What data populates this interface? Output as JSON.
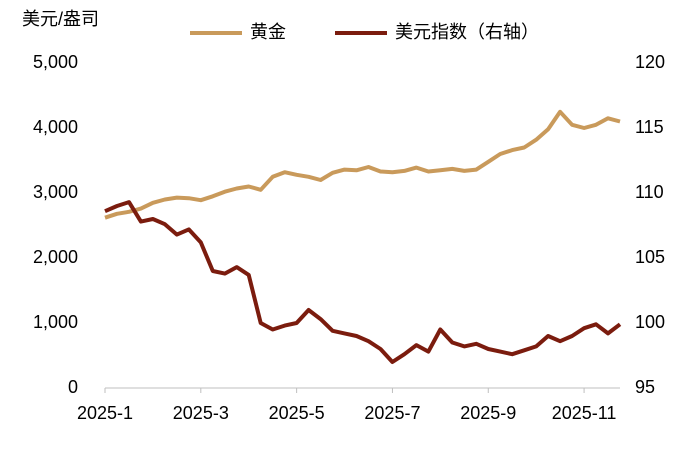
{
  "chart_data": {
    "type": "line",
    "y_label": "美元/盎司",
    "x": [
      1,
      1.25,
      1.5,
      1.75,
      2,
      2.25,
      2.5,
      2.75,
      3,
      3.25,
      3.5,
      3.75,
      4,
      4.25,
      4.5,
      4.75,
      5,
      5.25,
      5.5,
      5.75,
      6,
      6.25,
      6.5,
      6.75,
      7,
      7.25,
      7.5,
      7.75,
      8,
      8.25,
      8.5,
      8.75,
      9,
      9.25,
      9.5,
      9.75,
      10,
      10.25,
      10.5,
      10.75,
      11,
      11.25,
      11.5,
      11.75
    ],
    "xlim": [
      1,
      11.75
    ],
    "xticks": [
      {
        "value": 1,
        "label": "2025-1"
      },
      {
        "value": 3,
        "label": "2025-3"
      },
      {
        "value": 5,
        "label": "2025-5"
      },
      {
        "value": 7,
        "label": "2025-7"
      },
      {
        "value": 9,
        "label": "2025-9"
      },
      {
        "value": 11,
        "label": "2025-11"
      }
    ],
    "ylim": [
      0,
      5000
    ],
    "yticks": [
      0,
      {
        "value": 1000,
        "label": "1,000"
      },
      {
        "value": 2000,
        "label": "2,000"
      },
      {
        "value": 3000,
        "label": "3,000"
      },
      {
        "value": 4000,
        "label": "4,000"
      },
      {
        "value": 5000,
        "label": "5,000"
      }
    ],
    "y2lim": [
      95,
      120
    ],
    "y2ticks": [
      95,
      100,
      105,
      110,
      115,
      120
    ],
    "legend": "top",
    "series": [
      {
        "name": "黄金",
        "color": "#c99a5b",
        "values": [
          2620,
          2680,
          2710,
          2760,
          2850,
          2900,
          2930,
          2920,
          2890,
          2950,
          3020,
          3070,
          3100,
          3050,
          3250,
          3320,
          3280,
          3250,
          3200,
          3310,
          3360,
          3350,
          3400,
          3330,
          3320,
          3340,
          3390,
          3330,
          3350,
          3370,
          3340,
          3360,
          3480,
          3600,
          3660,
          3700,
          3820,
          3980,
          4250,
          4050,
          4000,
          4050,
          4150,
          4100
        ]
      },
      {
        "name": "美元指数（右轴）",
        "color": "#7b1c0e",
        "axis": "y2",
        "values": [
          108.6,
          109.0,
          109.3,
          107.8,
          108.0,
          107.6,
          106.8,
          107.2,
          106.2,
          104.0,
          103.8,
          104.3,
          103.7,
          100.0,
          99.5,
          99.8,
          100.0,
          101.0,
          100.3,
          99.4,
          99.2,
          99.0,
          98.6,
          98.0,
          97.0,
          97.6,
          98.3,
          97.8,
          99.5,
          98.5,
          98.2,
          98.4,
          98.0,
          97.8,
          97.6,
          97.9,
          98.2,
          99.0,
          98.6,
          99.0,
          99.6,
          99.9,
          99.2,
          99.9
        ]
      }
    ]
  }
}
